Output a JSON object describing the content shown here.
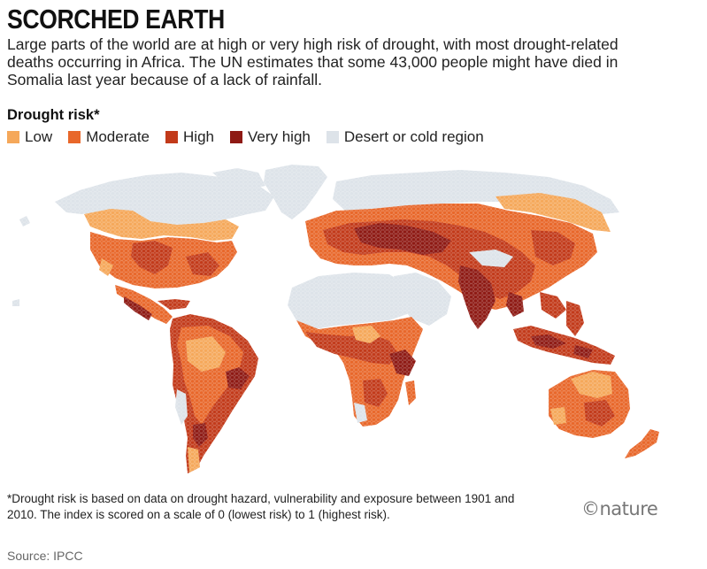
{
  "header": {
    "title": "SCORCHED EARTH",
    "subtitle": "Large parts of the world are at high or very high risk of drought, with most drought-related deaths occurring in Africa. The UN estimates that some 43,000 people might have died in Somalia last year because of a lack of rainfall."
  },
  "legend": {
    "title": "Drought risk*",
    "items": [
      {
        "label": "Low",
        "color": "#f5a85a"
      },
      {
        "label": "Moderate",
        "color": "#e8672a"
      },
      {
        "label": "High",
        "color": "#c23a1a"
      },
      {
        "label": "Very high",
        "color": "#8e1a14"
      },
      {
        "label": "Desert or cold region",
        "color": "#dde3e9"
      }
    ]
  },
  "colors": {
    "low": "#f5a85a",
    "moderate": "#e8672a",
    "high": "#c23a1a",
    "very_high": "#8e1a14",
    "desert_cold": "#dde3e9"
  },
  "footnote": "*Drought risk is based on data on drought hazard, vulnerability and exposure between 1901 and 2010. The index is scored on a scale of 0 (lowest risk) to 1 (highest risk).",
  "logo": "©nature",
  "source": "Source: IPCC"
}
